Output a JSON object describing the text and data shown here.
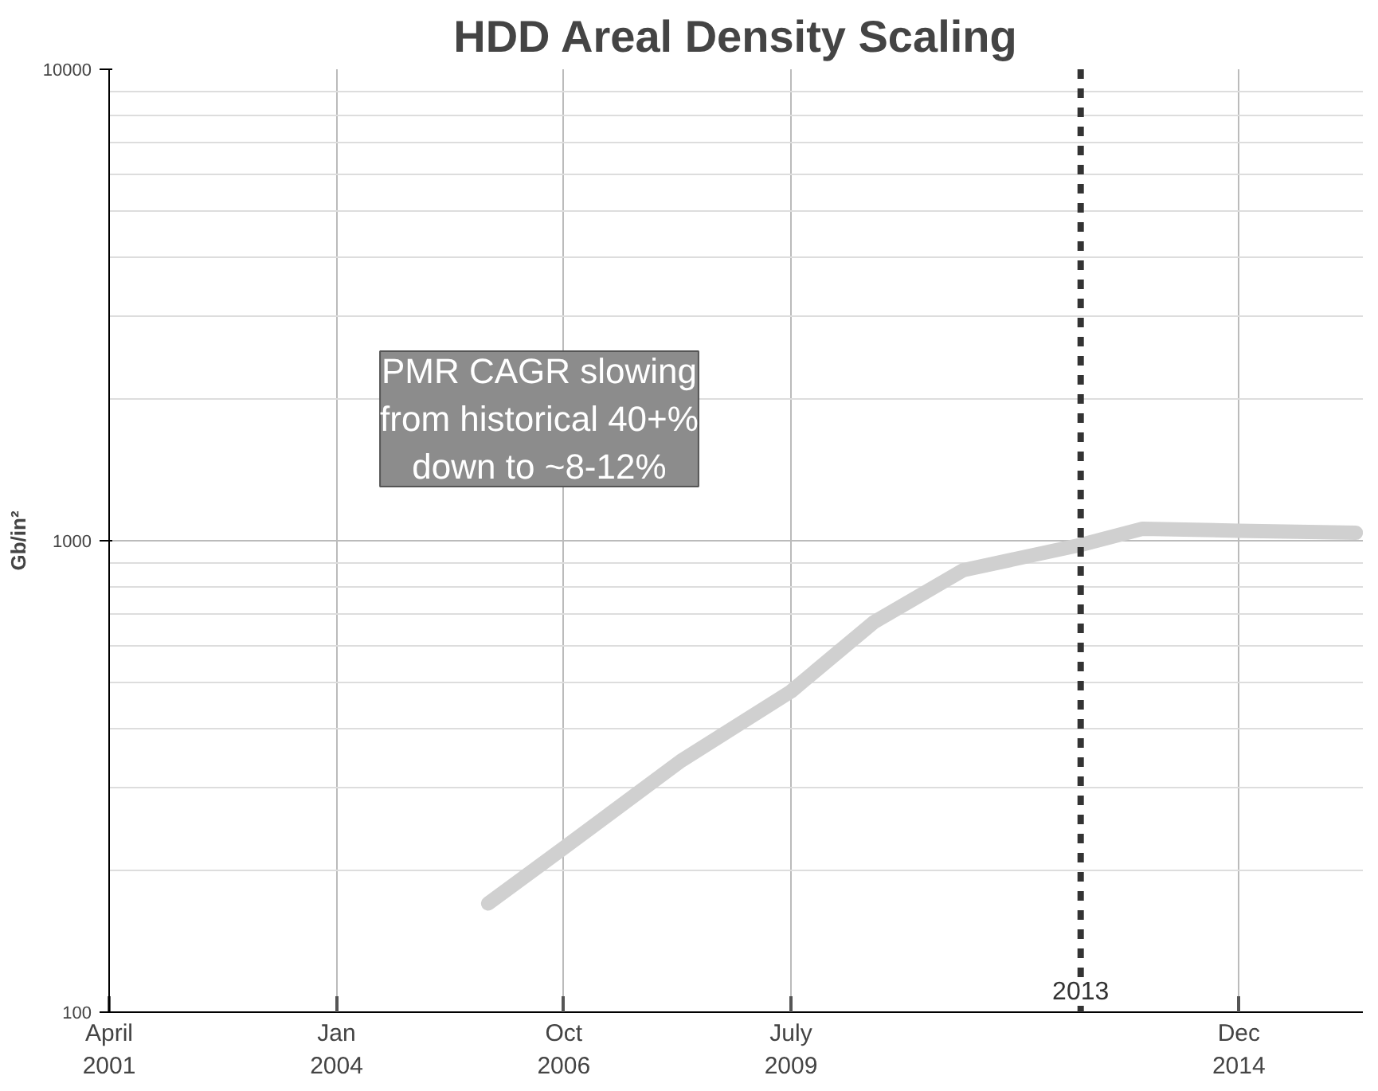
{
  "chart_data": {
    "type": "line",
    "title": "HDD Areal Density Scaling",
    "ylabel": "Gb/in²",
    "log": "y",
    "x": [
      "2005-11",
      "2006-10",
      "2008-03",
      "2009-07",
      "2010-07",
      "2011-08",
      "2013-01",
      "2013-10",
      "2014-12",
      "2016-05"
    ],
    "series": [
      {
        "color": "#d0d0d0",
        "values": [
          170,
          223,
          341,
          479,
          671,
          866,
          980,
          1060,
          1050,
          1040
        ]
      }
    ],
    "xlim": [
      "2001-04",
      "2016-06"
    ],
    "xticks": [
      {
        "value": "2001-04",
        "label": "April\n2001"
      },
      {
        "value": "2004-01",
        "label": "Jan\n2004"
      },
      {
        "value": "2006-10",
        "label": "Oct\n2006"
      },
      {
        "value": "2009-07",
        "label": "July\n2009"
      },
      {
        "value": "2014-12",
        "label": "Dec\n2014"
      }
    ],
    "ylim": [
      100,
      10000
    ],
    "yticks": [
      100,
      1000,
      10000
    ],
    "ref_lines": [
      {
        "axis": "x",
        "value": "2013-01",
        "label": "2013",
        "color": "#333333",
        "line_style": "dashed"
      }
    ],
    "annotations": [
      "PMR CAGR slowing\nfrom historical 40+%\ndown to ~8-12%"
    ],
    "grid": true,
    "marker": "none",
    "line_style": "solid"
  }
}
